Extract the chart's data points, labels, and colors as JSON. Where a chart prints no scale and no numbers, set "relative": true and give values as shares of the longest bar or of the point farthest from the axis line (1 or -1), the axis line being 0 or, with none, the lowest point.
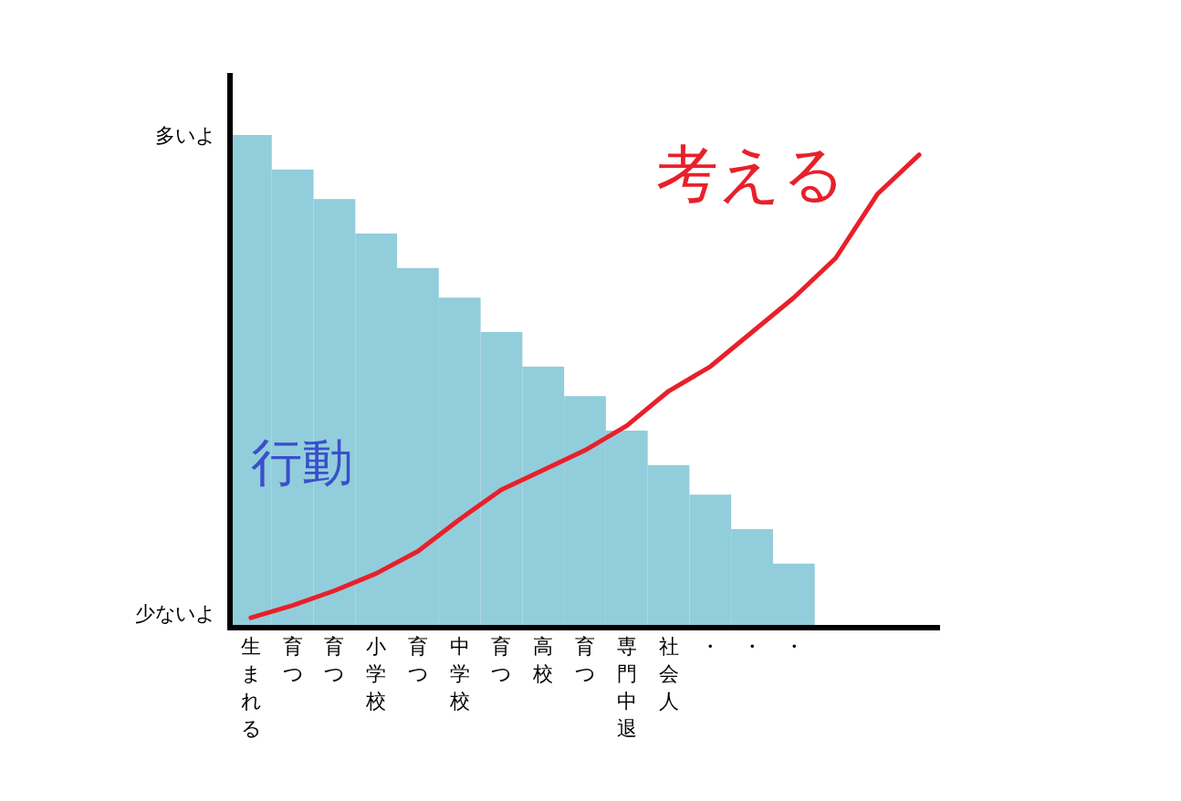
{
  "chart_data": {
    "type": "bar",
    "relative": true,
    "categories": [
      "生まれる",
      "育つ",
      "育つ",
      "小学校",
      "育つ",
      "中学校",
      "育つ",
      "高校",
      "育つ",
      "専門中退",
      "社会人",
      "・",
      "・",
      "・",
      null,
      null,
      null
    ],
    "annotations": [
      "多いよ",
      "少ないよ"
    ],
    "series": [
      {
        "name": "行動",
        "color": "#92cddb",
        "values": [
          1,
          0.93,
          0.87,
          0.8,
          0.73,
          0.67,
          0.6,
          0.53,
          0.47,
          0.4,
          0.33,
          0.27,
          0.2,
          0.13,
          null,
          null,
          null
        ]
      },
      {
        "name": "考える",
        "type": "line",
        "color": "#e8202a",
        "values": [
          0.02,
          0.045,
          0.075,
          0.11,
          0.155,
          0.22,
          0.28,
          0.32,
          0.36,
          0.41,
          0.48,
          0.53,
          0.6,
          0.67,
          0.75,
          0.88,
          0.96
        ]
      }
    ]
  }
}
